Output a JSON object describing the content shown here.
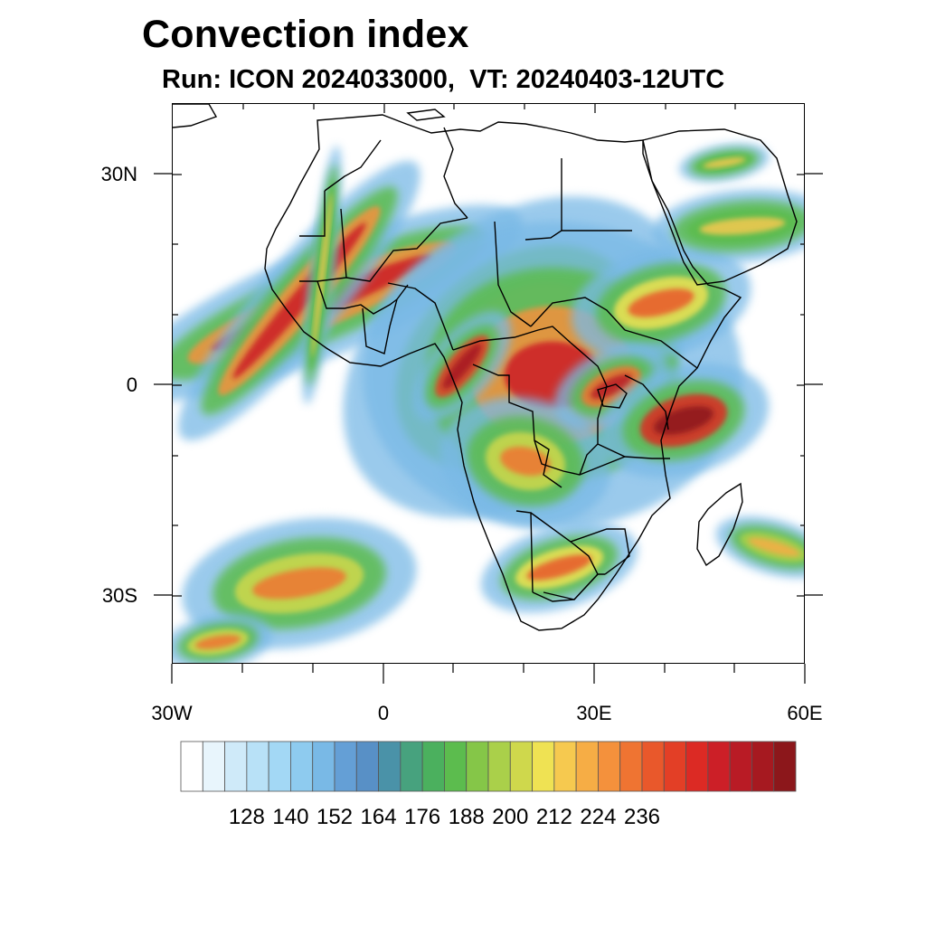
{
  "title": "Convection index",
  "subtitle": "Run: ICON 2024033000,  VT: 20240403-12UTC",
  "map": {
    "lat_labels": [
      "30N",
      "0",
      "30S"
    ],
    "lon_labels": [
      "30W",
      "0",
      "30E",
      "60E"
    ],
    "ocean_color": "#ffffff",
    "boundary_color": "#000000"
  },
  "colorbar": {
    "labels": [
      "128",
      "140",
      "152",
      "164",
      "176",
      "188",
      "200",
      "212",
      "224",
      "236"
    ],
    "colors": [
      "#ffffff",
      "#e8f5fc",
      "#cfeaf9",
      "#b8e1f7",
      "#a3d8f5",
      "#8ecbef",
      "#79b9e6",
      "#649fd6",
      "#5890c6",
      "#4a92a8",
      "#47a27e",
      "#4bb05e",
      "#5cbc4e",
      "#85c648",
      "#aad04a",
      "#cfd84c",
      "#efe253",
      "#f6c94f",
      "#f6ad45",
      "#f4913c",
      "#ef7432",
      "#e9582b",
      "#e33f26",
      "#dc2a24",
      "#cc1f27",
      "#b91b25",
      "#a61920",
      "#8c171b"
    ]
  },
  "features": [
    {
      "name": "atlantic-equatorial",
      "level": 0.72
    },
    {
      "name": "west-africa-coast",
      "level": 0.45
    },
    {
      "name": "congo-basin",
      "level": 0.7
    },
    {
      "name": "gabon-coast",
      "level": 0.8
    },
    {
      "name": "ethiopia-highlands",
      "level": 0.6
    },
    {
      "name": "lake-victoria",
      "level": 0.75
    },
    {
      "name": "tanzania-coast",
      "level": 0.85
    },
    {
      "name": "angola",
      "level": 0.55
    },
    {
      "name": "southern-africa",
      "level": 0.6
    },
    {
      "name": "south-atlantic-band",
      "level": 0.55
    },
    {
      "name": "southwest-indian-ocean",
      "level": 0.5
    },
    {
      "name": "arabia-yemen",
      "level": 0.45
    }
  ]
}
